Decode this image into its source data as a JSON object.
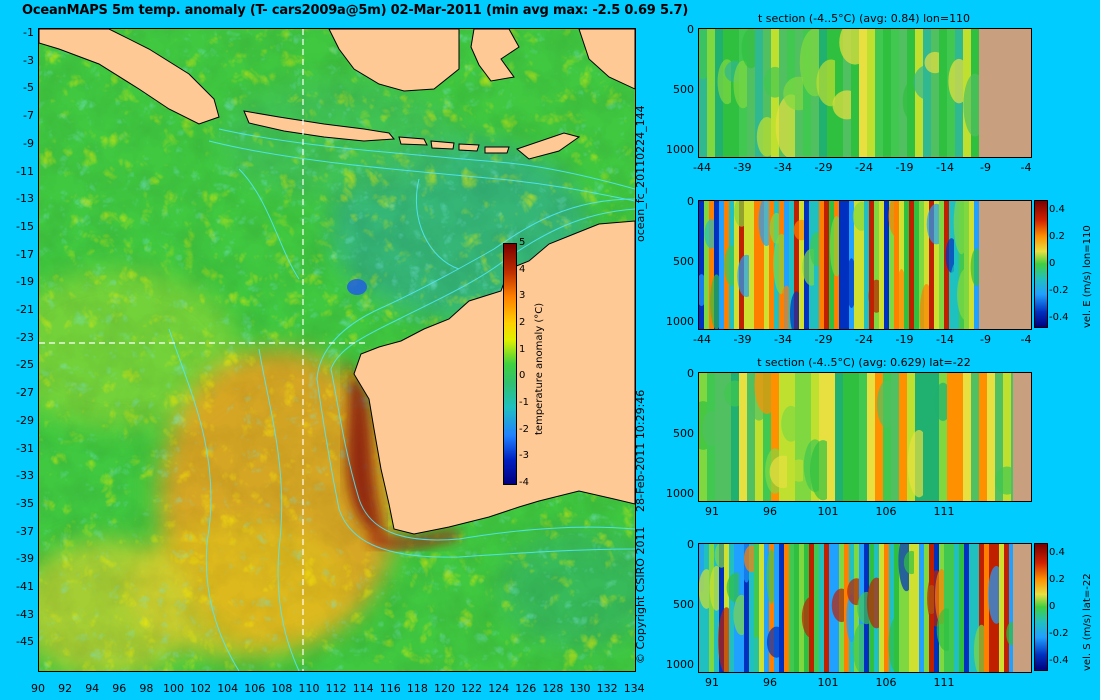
{
  "title": "OceanMAPS 5m temp. anomaly (T- cars2009a@5m) 02-Mar-2011 (min avg max: -2.5 0.69 5.7)",
  "map": {
    "lat_ticks": [
      "-1",
      "-3",
      "-5",
      "-7",
      "-9",
      "-11",
      "-13",
      "-15",
      "-17",
      "-19",
      "-21",
      "-23",
      "-25",
      "-27",
      "-29",
      "-31",
      "-33",
      "-35",
      "-37",
      "-39",
      "-41",
      "-43",
      "-45"
    ],
    "lon_ticks": [
      "90",
      "92",
      "94",
      "96",
      "98",
      "100",
      "102",
      "104",
      "106",
      "108",
      "110",
      "112",
      "114",
      "116",
      "118",
      "120",
      "122",
      "124",
      "126",
      "128",
      "130",
      "132",
      "134"
    ],
    "colorbar_label": "temperature anomaly (°C)",
    "colorbar_ticks": [
      "5",
      "4",
      "3",
      "2",
      "1",
      "0",
      "-1",
      "-2",
      "-3",
      "-4"
    ],
    "section_lon": 110,
    "section_lat": -22
  },
  "side_texts": {
    "model_run": "ocean_fc_20110224_144",
    "issued": "28-Feb-2011 10:29:46",
    "copyright": "© Copyright CSIRO 2011"
  },
  "panels": [
    {
      "title": "t section (-4..5°C) (avg: 0.84) lon=110",
      "depth_ticks": [
        "0",
        "500",
        "1000"
      ],
      "x_ticks": [
        "-44",
        "-39",
        "-34",
        "-29",
        "-24",
        "-19",
        "-14",
        "-9",
        "-4"
      ],
      "colorbar": null
    },
    {
      "title": "",
      "depth_ticks": [
        "0",
        "500",
        "1000"
      ],
      "x_ticks": [
        "-44",
        "-39",
        "-34",
        "-29",
        "-24",
        "-19",
        "-14",
        "-9",
        "-4"
      ],
      "colorbar": {
        "label": "vel. E (m/s) lon=110",
        "ticks": [
          "0.4",
          "0.2",
          "0",
          "-0.2",
          "-0.4"
        ]
      }
    },
    {
      "title": "t section (-4..5°C) (avg: 0.629) lat=-22",
      "depth_ticks": [
        "0",
        "500",
        "1000"
      ],
      "x_ticks": [
        "91",
        "96",
        "101",
        "106",
        "111"
      ],
      "colorbar": null
    },
    {
      "title": "",
      "depth_ticks": [
        "0",
        "500",
        "1000"
      ],
      "x_ticks": [
        "91",
        "96",
        "101",
        "106",
        "111"
      ],
      "colorbar": {
        "label": "vel. S (m/s) lat=-22",
        "ticks": [
          "0.4",
          "0.2",
          "0",
          "-0.2",
          "-0.4"
        ]
      }
    }
  ]
}
